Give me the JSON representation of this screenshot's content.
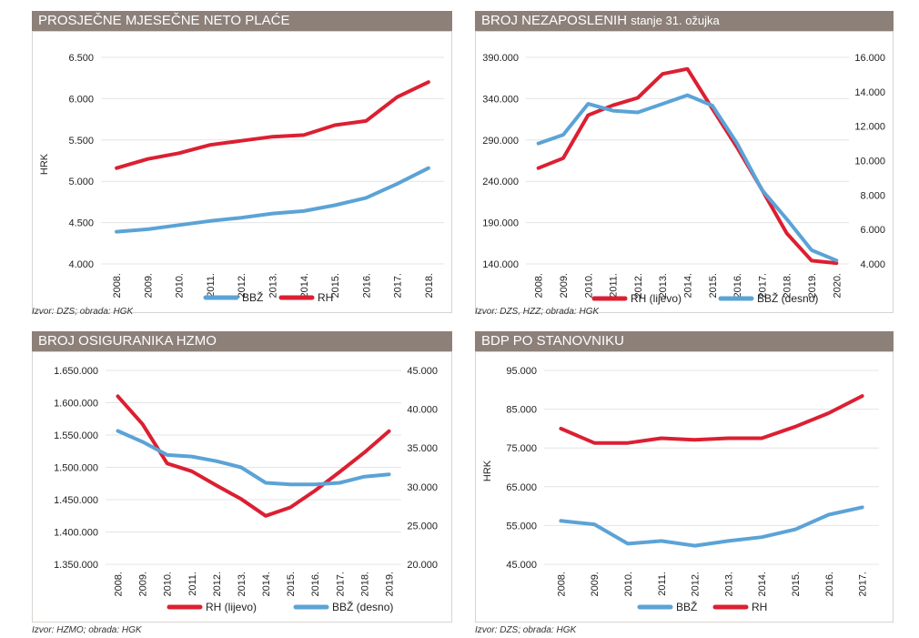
{
  "colors": {
    "bbz": "#5ba3d6",
    "rh": "#dc1f32",
    "grid": "#e4e4e4",
    "title_bg": "#8c8079"
  },
  "chart_data": [
    {
      "id": "neto-place",
      "type": "line",
      "title": "PROSJEČNE MJESEČNE NETO PLAĆE",
      "subtitle": "",
      "ylabel": "HRK",
      "source": "Izvor: DZS; obrada: HGK",
      "categories": [
        "2008.",
        "2009.",
        "2010.",
        "2011.",
        "2012.",
        "2013.",
        "2014.",
        "2015.",
        "2016.",
        "2017.",
        "2018."
      ],
      "left_axis": {
        "min": 4000,
        "max": 6500,
        "ticks": [
          "4.000",
          "4.500",
          "5.000",
          "5.500",
          "6.000",
          "6.500"
        ],
        "tick_values": [
          4000,
          4500,
          5000,
          5500,
          6000,
          6500
        ]
      },
      "right_axis": null,
      "grid": true,
      "legend_position": "bottom",
      "series": [
        {
          "name": "BBŽ",
          "color": "#5ba3d6",
          "axis": "left",
          "values": [
            4390,
            4420,
            4470,
            4520,
            4560,
            4610,
            4640,
            4710,
            4800,
            4970,
            5160
          ]
        },
        {
          "name": "RH",
          "color": "#dc1f32",
          "axis": "left",
          "values": [
            5160,
            5270,
            5340,
            5440,
            5490,
            5540,
            5560,
            5680,
            5730,
            6020,
            6200
          ]
        }
      ],
      "legend": [
        {
          "name": "BBŽ",
          "color": "#5ba3d6"
        },
        {
          "name": "RH",
          "color": "#dc1f32"
        }
      ]
    },
    {
      "id": "nezaposleni",
      "type": "line",
      "title": "BROJ NEZAPOSLENIH",
      "subtitle": "stanje 31. ožujka",
      "ylabel": "",
      "source": "Izvor: DZS, HZZ; obrada: HGK",
      "categories": [
        "2008.",
        "2009.",
        "2010.",
        "2011.",
        "2012.",
        "2013.",
        "2014.",
        "2015.",
        "2016.",
        "2017.",
        "2018.",
        "2019.",
        "2020."
      ],
      "left_axis": {
        "min": 140000,
        "max": 390000,
        "ticks": [
          "140.000",
          "190.000",
          "240.000",
          "290.000",
          "340.000",
          "390.000"
        ],
        "tick_values": [
          140000,
          190000,
          240000,
          290000,
          340000,
          390000
        ]
      },
      "right_axis": {
        "min": 4000,
        "max": 16000,
        "ticks": [
          "4.000",
          "6.000",
          "8.000",
          "10.000",
          "12.000",
          "14.000",
          "16.000"
        ],
        "tick_values": [
          4000,
          6000,
          8000,
          10000,
          12000,
          14000,
          16000
        ]
      },
      "grid": true,
      "legend_position": "bottom",
      "series": [
        {
          "name": "RH (lijevo)",
          "color": "#dc1f32",
          "axis": "left",
          "values": [
            256000,
            268000,
            320000,
            332000,
            341000,
            370000,
            376000,
            328000,
            281000,
            230000,
            177000,
            144000,
            141000
          ]
        },
        {
          "name": "BBŽ (desno)",
          "color": "#5ba3d6",
          "axis": "right",
          "values": [
            11000,
            11500,
            13300,
            12900,
            12800,
            13300,
            13800,
            13200,
            11000,
            8300,
            6600,
            4800,
            4200
          ]
        }
      ],
      "legend": [
        {
          "name": "RH (lijevo)",
          "color": "#dc1f32"
        },
        {
          "name": "BBŽ (desno)",
          "color": "#5ba3d6"
        }
      ]
    },
    {
      "id": "osiguranici",
      "type": "line",
      "title": "BROJ OSIGURANIKA HZMO",
      "subtitle": "",
      "ylabel": "",
      "source": "Izvor: HZMO; obrada: HGK",
      "categories": [
        "2008.",
        "2009.",
        "2010.",
        "2011.",
        "2012.",
        "2013.",
        "2014.",
        "2015.",
        "2016.",
        "2017.",
        "2018.",
        "2019."
      ],
      "left_axis": {
        "min": 1350000,
        "max": 1650000,
        "ticks": [
          "1.350.000",
          "1.400.000",
          "1.450.000",
          "1.500.000",
          "1.550.000",
          "1.600.000",
          "1.650.000"
        ],
        "tick_values": [
          1350000,
          1400000,
          1450000,
          1500000,
          1550000,
          1600000,
          1650000
        ]
      },
      "right_axis": {
        "min": 20000,
        "max": 45000,
        "ticks": [
          "20.000",
          "25.000",
          "30.000",
          "35.000",
          "40.000",
          "45.000"
        ],
        "tick_values": [
          20000,
          25000,
          30000,
          35000,
          40000,
          45000
        ]
      },
      "grid": true,
      "legend_position": "bottom",
      "series": [
        {
          "name": "RH (lijevo)",
          "color": "#dc1f32",
          "axis": "left",
          "values": [
            1610000,
            1567000,
            1506000,
            1494000,
            1472000,
            1451000,
            1425000,
            1438000,
            1464000,
            1493000,
            1523000,
            1556000
          ]
        },
        {
          "name": "BBŽ (desno)",
          "color": "#5ba3d6",
          "axis": "right",
          "values": [
            37200,
            35800,
            34100,
            33900,
            33300,
            32500,
            30500,
            30300,
            30300,
            30500,
            31300,
            31600
          ]
        }
      ],
      "legend": [
        {
          "name": "RH (lijevo)",
          "color": "#dc1f32"
        },
        {
          "name": "BBŽ (desno)",
          "color": "#5ba3d6"
        }
      ]
    },
    {
      "id": "bdp",
      "type": "line",
      "title": "BDP PO STANOVNIKU",
      "subtitle": "",
      "ylabel": "HRK",
      "source": "Izvor: DZS; obrada: HGK",
      "categories": [
        "2008.",
        "2009.",
        "2010.",
        "2011.",
        "2012.",
        "2013.",
        "2014.",
        "2015.",
        "2016.",
        "2017."
      ],
      "left_axis": {
        "min": 45000,
        "max": 95000,
        "ticks": [
          "45.000",
          "55.000",
          "65.000",
          "75.000",
          "85.000",
          "95.000"
        ],
        "tick_values": [
          45000,
          55000,
          65000,
          75000,
          85000,
          95000
        ]
      },
      "right_axis": null,
      "grid": true,
      "legend_position": "bottom",
      "series": [
        {
          "name": "BBŽ",
          "color": "#5ba3d6",
          "axis": "left",
          "values": [
            56200,
            55300,
            50300,
            51000,
            49800,
            51000,
            52000,
            54000,
            57800,
            59700
          ]
        },
        {
          "name": "RH",
          "color": "#dc1f32",
          "axis": "left",
          "values": [
            80000,
            76300,
            76300,
            77500,
            77100,
            77500,
            77500,
            80500,
            84000,
            88400
          ]
        }
      ],
      "legend": [
        {
          "name": "BBŽ",
          "color": "#5ba3d6"
        },
        {
          "name": "RH",
          "color": "#dc1f32"
        }
      ]
    }
  ]
}
